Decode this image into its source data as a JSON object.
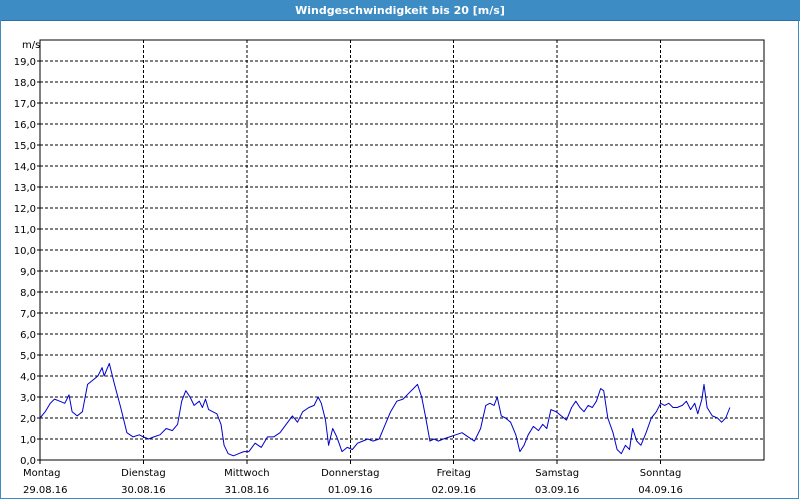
{
  "window": {
    "title": "Windgeschwindigkeit bis 20 [m/s]"
  },
  "colors": {
    "titlebar": "#3d8cc4",
    "series": "#0000cc",
    "grid": "#000000"
  },
  "chart_data": {
    "type": "line",
    "title": "Windgeschwindigkeit bis 20 [m/s]",
    "ylabel": "m/s",
    "xlabel": "",
    "ylim": [
      0,
      20
    ],
    "yticks": [
      "0,0",
      "1,0",
      "2,0",
      "3,0",
      "4,0",
      "5,0",
      "6,0",
      "7,0",
      "8,0",
      "9,0",
      "10,0",
      "11,0",
      "12,0",
      "13,0",
      "14,0",
      "15,0",
      "16,0",
      "17,0",
      "18,0",
      "19,0"
    ],
    "xlim_days": [
      0,
      7
    ],
    "grid": true,
    "x_labels": [
      {
        "day": "Montag",
        "date": "29.08.16"
      },
      {
        "day": "Dienstag",
        "date": "30.08.16"
      },
      {
        "day": "Mittwoch",
        "date": "31.08.16"
      },
      {
        "day": "Donnerstag",
        "date": "01.09.16"
      },
      {
        "day": "Freitag",
        "date": "02.09.16"
      },
      {
        "day": "Samstag",
        "date": "03.09.16"
      },
      {
        "day": "Sonntag",
        "date": "04.09.16"
      }
    ],
    "series": [
      {
        "values": [
          [
            0.0,
            2.0
          ],
          [
            0.05,
            2.3
          ],
          [
            0.1,
            2.7
          ],
          [
            0.14,
            2.9
          ],
          [
            0.19,
            2.8
          ],
          [
            0.24,
            2.7
          ],
          [
            0.28,
            3.1
          ],
          [
            0.31,
            2.3
          ],
          [
            0.36,
            2.1
          ],
          [
            0.41,
            2.3
          ],
          [
            0.46,
            3.6
          ],
          [
            0.51,
            3.8
          ],
          [
            0.56,
            4.0
          ],
          [
            0.6,
            4.4
          ],
          [
            0.62,
            4.0
          ],
          [
            0.67,
            4.6
          ],
          [
            0.72,
            3.6
          ],
          [
            0.78,
            2.5
          ],
          [
            0.84,
            1.3
          ],
          [
            0.9,
            1.1
          ],
          [
            0.96,
            1.2
          ],
          [
            1.0,
            1.1
          ],
          [
            1.05,
            1.0
          ],
          [
            1.1,
            1.1
          ],
          [
            1.16,
            1.2
          ],
          [
            1.22,
            1.5
          ],
          [
            1.28,
            1.4
          ],
          [
            1.33,
            1.7
          ],
          [
            1.37,
            2.8
          ],
          [
            1.41,
            3.3
          ],
          [
            1.45,
            3.0
          ],
          [
            1.49,
            2.6
          ],
          [
            1.54,
            2.8
          ],
          [
            1.57,
            2.5
          ],
          [
            1.6,
            2.9
          ],
          [
            1.63,
            2.4
          ],
          [
            1.67,
            2.3
          ],
          [
            1.71,
            2.2
          ],
          [
            1.75,
            1.7
          ],
          [
            1.78,
            0.7
          ],
          [
            1.82,
            0.3
          ],
          [
            1.87,
            0.2
          ],
          [
            1.92,
            0.3
          ],
          [
            1.97,
            0.4
          ],
          [
            2.02,
            0.4
          ],
          [
            2.08,
            0.8
          ],
          [
            2.14,
            0.6
          ],
          [
            2.2,
            1.1
          ],
          [
            2.26,
            1.1
          ],
          [
            2.32,
            1.3
          ],
          [
            2.38,
            1.7
          ],
          [
            2.44,
            2.1
          ],
          [
            2.49,
            1.8
          ],
          [
            2.54,
            2.3
          ],
          [
            2.6,
            2.5
          ],
          [
            2.65,
            2.6
          ],
          [
            2.69,
            3.0
          ],
          [
            2.72,
            2.7
          ],
          [
            2.76,
            1.9
          ],
          [
            2.79,
            0.7
          ],
          [
            2.83,
            1.5
          ],
          [
            2.87,
            1.1
          ],
          [
            2.92,
            0.4
          ],
          [
            2.97,
            0.6
          ],
          [
            3.02,
            0.5
          ],
          [
            3.07,
            0.8
          ],
          [
            3.12,
            0.9
          ],
          [
            3.17,
            1.0
          ],
          [
            3.22,
            0.9
          ],
          [
            3.28,
            1.0
          ],
          [
            3.33,
            1.6
          ],
          [
            3.39,
            2.3
          ],
          [
            3.45,
            2.8
          ],
          [
            3.51,
            2.9
          ],
          [
            3.57,
            3.2
          ],
          [
            3.61,
            3.4
          ],
          [
            3.65,
            3.6
          ],
          [
            3.69,
            3.0
          ],
          [
            3.73,
            2.0
          ],
          [
            3.77,
            0.9
          ],
          [
            3.81,
            1.0
          ],
          [
            3.85,
            0.9
          ],
          [
            3.9,
            1.0
          ],
          [
            3.96,
            1.1
          ],
          [
            4.02,
            1.2
          ],
          [
            4.08,
            1.3
          ],
          [
            4.14,
            1.1
          ],
          [
            4.2,
            0.9
          ],
          [
            4.26,
            1.5
          ],
          [
            4.31,
            2.6
          ],
          [
            4.35,
            2.7
          ],
          [
            4.39,
            2.6
          ],
          [
            4.42,
            3.0
          ],
          [
            4.46,
            2.1
          ],
          [
            4.5,
            2.0
          ],
          [
            4.55,
            1.8
          ],
          [
            4.6,
            1.2
          ],
          [
            4.64,
            0.4
          ],
          [
            4.68,
            0.7
          ],
          [
            4.72,
            1.2
          ],
          [
            4.77,
            1.6
          ],
          [
            4.82,
            1.4
          ],
          [
            4.86,
            1.7
          ],
          [
            4.9,
            1.5
          ],
          [
            4.94,
            2.4
          ],
          [
            4.99,
            2.3
          ],
          [
            5.04,
            2.1
          ],
          [
            5.09,
            1.9
          ],
          [
            5.14,
            2.5
          ],
          [
            5.18,
            2.8
          ],
          [
            5.22,
            2.5
          ],
          [
            5.26,
            2.3
          ],
          [
            5.3,
            2.6
          ],
          [
            5.34,
            2.5
          ],
          [
            5.38,
            2.8
          ],
          [
            5.42,
            3.4
          ],
          [
            5.45,
            3.3
          ],
          [
            5.49,
            2.0
          ],
          [
            5.54,
            1.3
          ],
          [
            5.58,
            0.5
          ],
          [
            5.62,
            0.3
          ],
          [
            5.66,
            0.7
          ],
          [
            5.7,
            0.5
          ],
          [
            5.73,
            1.5
          ],
          [
            5.77,
            0.9
          ],
          [
            5.81,
            0.7
          ],
          [
            5.86,
            1.3
          ],
          [
            5.91,
            2.0
          ],
          [
            5.96,
            2.3
          ],
          [
            6.0,
            2.7
          ],
          [
            6.04,
            2.6
          ],
          [
            6.08,
            2.7
          ],
          [
            6.12,
            2.5
          ],
          [
            6.16,
            2.5
          ],
          [
            6.21,
            2.6
          ],
          [
            6.25,
            2.8
          ],
          [
            6.29,
            2.4
          ],
          [
            6.33,
            2.7
          ],
          [
            6.36,
            2.2
          ],
          [
            6.4,
            2.9
          ],
          [
            6.42,
            3.6
          ],
          [
            6.45,
            2.5
          ],
          [
            6.5,
            2.1
          ],
          [
            6.55,
            2.0
          ],
          [
            6.59,
            1.8
          ],
          [
            6.63,
            2.0
          ],
          [
            6.67,
            2.5
          ]
        ]
      }
    ]
  }
}
